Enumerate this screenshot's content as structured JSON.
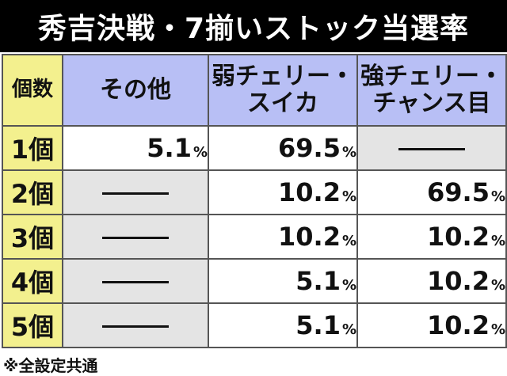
{
  "title": "秀吉決戦・7揃いストック当選率",
  "table": {
    "header": {
      "count": "個数",
      "col1": "その他",
      "col2_line1": "弱チェリー・",
      "col2_line2": "スイカ",
      "col3_line1": "強チェリー・",
      "col3_line2": "チャンス目"
    },
    "rows": [
      {
        "count": "1個",
        "c1": "5.1",
        "c2": "69.5",
        "c3": "—"
      },
      {
        "count": "2個",
        "c1": "—",
        "c2": "10.2",
        "c3": "69.5"
      },
      {
        "count": "3個",
        "c1": "—",
        "c2": "10.2",
        "c3": "10.2"
      },
      {
        "count": "4個",
        "c1": "—",
        "c2": "5.1",
        "c3": "10.2"
      },
      {
        "count": "5個",
        "c1": "—",
        "c2": "5.1",
        "c3": "10.2"
      }
    ],
    "percent_sign": "%"
  },
  "note": "※全設定共通",
  "colors": {
    "header_blue": "#b8bff5",
    "count_yellow": "#f3f08e",
    "cell_gray": "#e4e4e4",
    "title_bg": "#000000"
  }
}
